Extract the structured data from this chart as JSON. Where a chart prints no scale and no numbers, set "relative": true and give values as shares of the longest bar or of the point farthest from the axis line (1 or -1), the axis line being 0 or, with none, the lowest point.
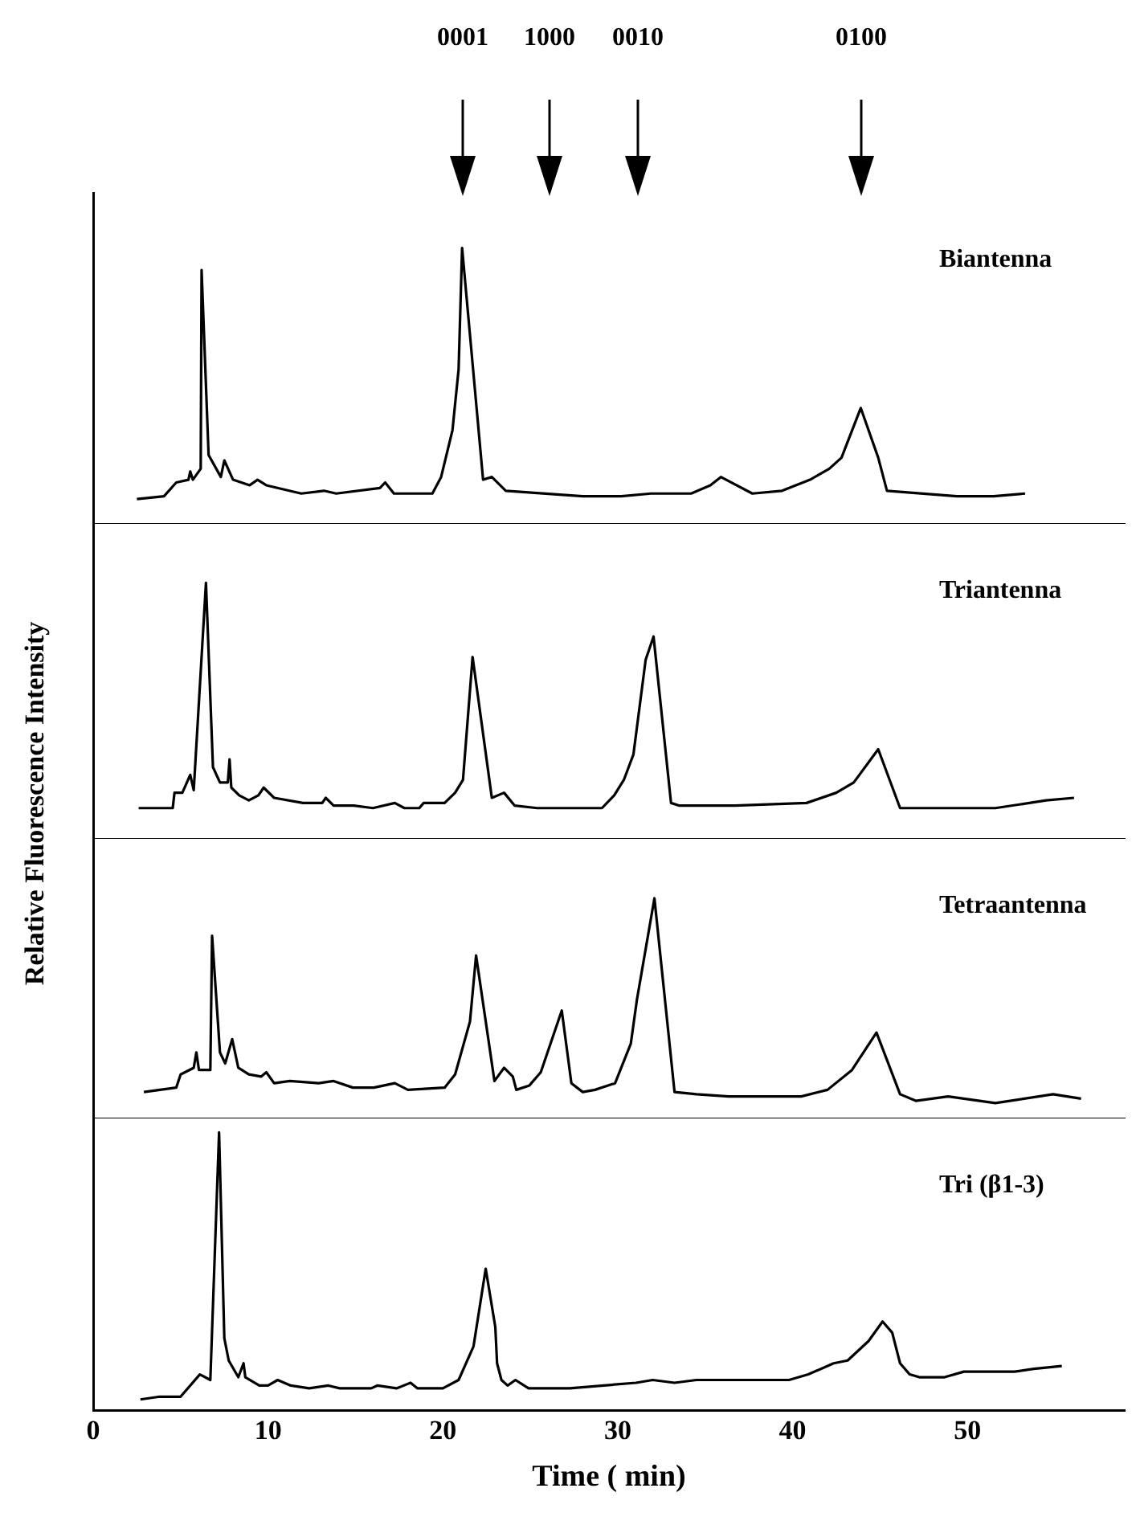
{
  "chart_data": [
    {
      "type": "line",
      "ylabel": "Relative Fluorescence Intensity",
      "relative": true,
      "xlim": [
        0,
        59
      ],
      "xticks": [
        0,
        10,
        20,
        30,
        40,
        50
      ],
      "tick_labels": false,
      "grid": false,
      "legend": false,
      "marker": "none",
      "annotations": [
        "0001",
        "1000",
        "0010",
        "0100"
      ],
      "series": [
        {
          "name": "Biantenna",
          "color": "#000000",
          "x": [
            2.5,
            4.05,
            4.75,
            5.45,
            5.55,
            5.7,
            6.15,
            6.2,
            6.6,
            7.3,
            7.5,
            8.0,
            8.95,
            9.4,
            9.9,
            11.9,
            13.2,
            13.9,
            16.4,
            16.7,
            17.2,
            19.4,
            19.9,
            20.55,
            20.9,
            21.1,
            22.3,
            22.8,
            23.6,
            28.0,
            30.2,
            31.9,
            34.2,
            35.3,
            35.9,
            37.7,
            39.4,
            41.0,
            42.1,
            42.8,
            43.9,
            44.9,
            45.4,
            49.4,
            51.5,
            53.3
          ],
          "values": [
            0.09,
            0.1,
            0.15,
            0.16,
            0.19,
            0.16,
            0.2,
            0.92,
            0.25,
            0.17,
            0.23,
            0.16,
            0.14,
            0.16,
            0.14,
            0.11,
            0.12,
            0.11,
            0.13,
            0.15,
            0.11,
            0.11,
            0.17,
            0.34,
            0.56,
            1.0,
            0.16,
            0.17,
            0.12,
            0.1,
            0.1,
            0.11,
            0.11,
            0.14,
            0.17,
            0.11,
            0.12,
            0.16,
            0.2,
            0.24,
            0.42,
            0.24,
            0.12,
            0.1,
            0.1,
            0.11
          ]
        }
      ]
    },
    {
      "type": "line",
      "relative": true,
      "xlim": [
        0,
        59
      ],
      "xticks": [
        0,
        10,
        20,
        30,
        40,
        50
      ],
      "tick_labels": false,
      "grid": false,
      "legend": false,
      "marker": "none",
      "series": [
        {
          "name": "Triantenna",
          "color": "#000000",
          "x": [
            2.6,
            4.55,
            4.65,
            5.1,
            5.55,
            5.75,
            6.45,
            6.85,
            7.25,
            7.7,
            7.8,
            7.9,
            8.35,
            8.9,
            9.45,
            9.75,
            10.35,
            12.0,
            13.1,
            13.3,
            13.75,
            14.9,
            16.0,
            17.25,
            17.8,
            18.65,
            18.9,
            20.1,
            20.7,
            21.15,
            21.7,
            22.8,
            23.5,
            24.1,
            25.4,
            29.1,
            29.8,
            30.35,
            30.9,
            31.6,
            32.05,
            33.05,
            33.5,
            36.7,
            40.8,
            42.5,
            43.5,
            44.9,
            46.15,
            51.6,
            54.5,
            56.1
          ],
          "values": [
            0.12,
            0.12,
            0.18,
            0.18,
            0.25,
            0.19,
            1.0,
            0.28,
            0.22,
            0.22,
            0.31,
            0.2,
            0.17,
            0.15,
            0.17,
            0.2,
            0.16,
            0.14,
            0.14,
            0.16,
            0.13,
            0.13,
            0.12,
            0.14,
            0.12,
            0.12,
            0.14,
            0.14,
            0.18,
            0.23,
            0.71,
            0.16,
            0.18,
            0.13,
            0.12,
            0.12,
            0.17,
            0.23,
            0.33,
            0.7,
            0.79,
            0.14,
            0.13,
            0.13,
            0.14,
            0.18,
            0.22,
            0.35,
            0.12,
            0.12,
            0.15,
            0.16
          ]
        }
      ]
    },
    {
      "type": "line",
      "relative": true,
      "xlim": [
        0,
        59
      ],
      "xticks": [
        0,
        10,
        20,
        30,
        40,
        50
      ],
      "tick_labels": false,
      "grid": false,
      "legend": false,
      "marker": "none",
      "series": [
        {
          "name": "Tetraantenna",
          "color": "#000000",
          "x": [
            2.9,
            4.75,
            5.0,
            5.75,
            5.9,
            6.05,
            6.7,
            6.8,
            7.25,
            7.55,
            7.95,
            8.3,
            8.9,
            9.6,
            9.9,
            10.35,
            11.25,
            12.9,
            13.75,
            14.85,
            16.05,
            17.25,
            18.0,
            20.1,
            20.7,
            21.55,
            21.9,
            22.95,
            23.5,
            24.0,
            24.2,
            24.95,
            25.6,
            26.8,
            27.35,
            28.0,
            28.7,
            29.85,
            30.75,
            31.1,
            32.1,
            33.25,
            34.5,
            36.35,
            40.5,
            42.0,
            43.4,
            44.8,
            46.15,
            47.05,
            48.9,
            51.6,
            54.9,
            56.5
          ],
          "values": [
            0.12,
            0.14,
            0.2,
            0.23,
            0.3,
            0.22,
            0.22,
            0.83,
            0.3,
            0.25,
            0.36,
            0.23,
            0.2,
            0.19,
            0.21,
            0.16,
            0.17,
            0.16,
            0.17,
            0.14,
            0.14,
            0.16,
            0.13,
            0.14,
            0.2,
            0.44,
            0.74,
            0.17,
            0.23,
            0.19,
            0.13,
            0.15,
            0.21,
            0.49,
            0.16,
            0.12,
            0.13,
            0.16,
            0.34,
            0.54,
            1.0,
            0.12,
            0.11,
            0.1,
            0.1,
            0.13,
            0.22,
            0.39,
            0.11,
            0.08,
            0.1,
            0.07,
            0.11,
            0.09
          ]
        }
      ]
    },
    {
      "type": "line",
      "xlabel": "Time ( min)",
      "relative": true,
      "xlim": [
        0,
        59
      ],
      "xticks": [
        0,
        10,
        20,
        30,
        40,
        50
      ],
      "tick_labels": "x",
      "grid": false,
      "legend": false,
      "marker": "none",
      "series": [
        {
          "name": "Tri (β1-3)",
          "color": "#000000",
          "x": [
            2.7,
            3.8,
            5.0,
            6.1,
            6.7,
            7.2,
            7.5,
            7.75,
            8.3,
            8.6,
            8.7,
            9.5,
            10.0,
            10.55,
            11.3,
            12.35,
            13.45,
            14.1,
            15.9,
            16.25,
            17.35,
            18.15,
            18.55,
            20.0,
            20.9,
            21.75,
            22.45,
            23.0,
            23.1,
            23.35,
            23.7,
            24.15,
            24.9,
            27.25,
            31.05,
            32.0,
            33.25,
            34.5,
            36.7,
            38.15,
            39.8,
            40.9,
            42.35,
            43.15,
            44.35,
            45.15,
            45.7,
            46.15,
            46.7,
            47.25,
            48.7,
            49.8,
            52.7,
            53.8,
            55.4
          ],
          "values": [
            0.04,
            0.05,
            0.05,
            0.13,
            0.11,
            1.0,
            0.26,
            0.18,
            0.12,
            0.17,
            0.12,
            0.09,
            0.09,
            0.11,
            0.09,
            0.08,
            0.09,
            0.08,
            0.08,
            0.09,
            0.08,
            0.1,
            0.08,
            0.08,
            0.11,
            0.23,
            0.51,
            0.3,
            0.17,
            0.11,
            0.09,
            0.11,
            0.08,
            0.08,
            0.1,
            0.11,
            0.1,
            0.11,
            0.11,
            0.11,
            0.11,
            0.13,
            0.17,
            0.18,
            0.25,
            0.32,
            0.28,
            0.17,
            0.13,
            0.12,
            0.12,
            0.14,
            0.14,
            0.15,
            0.16
          ]
        }
      ]
    }
  ]
}
